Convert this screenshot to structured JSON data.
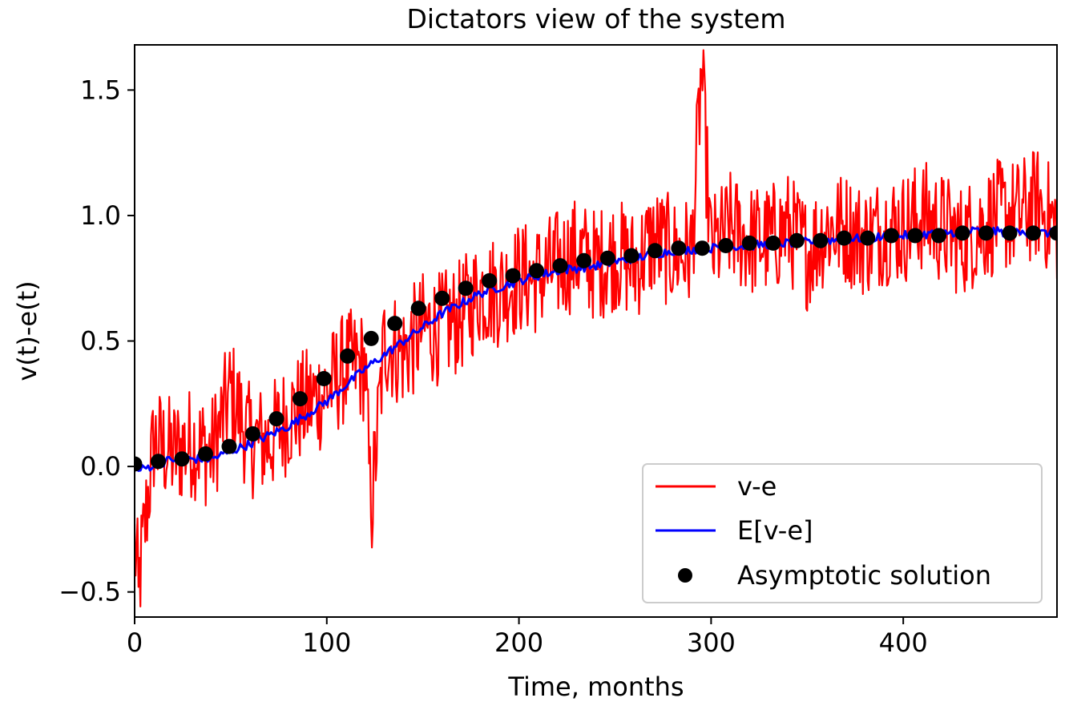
{
  "chart_data": {
    "type": "line",
    "title": "Dictators view of the system",
    "xlabel": "Time, months",
    "ylabel": "v(t)-e(t)",
    "xlim": [
      0,
      480
    ],
    "ylim": [
      -0.6,
      1.68
    ],
    "xticks": [
      0,
      100,
      200,
      300,
      400
    ],
    "xtick_labels": [
      "0",
      "100",
      "200",
      "300",
      "400"
    ],
    "yticks": [
      -0.5,
      0.0,
      0.5,
      1.0,
      1.5
    ],
    "ytick_labels": [
      "−0.5",
      "0.0",
      "0.5",
      "1.0",
      "1.5"
    ],
    "grid": false,
    "legend_position": "lower-right",
    "colors": {
      "ve": "#ff0000",
      "expectation": "#0000ff",
      "asymptotic": "#000000"
    },
    "series": [
      {
        "name": "v-e",
        "kind": "line",
        "color": "#ff0000"
      },
      {
        "name": "E[v-e]",
        "kind": "line",
        "color": "#0000ff"
      },
      {
        "name": "Asymptotic solution",
        "kind": "scatter",
        "color": "#000000"
      }
    ],
    "asymptotic_points": {
      "x": [
        0,
        12.3,
        24.6,
        36.9,
        49.2,
        61.5,
        73.8,
        86.1,
        98.5,
        110.8,
        123.1,
        135.4,
        147.7,
        160,
        172.3,
        184.6,
        196.9,
        209.2,
        221.5,
        233.8,
        246.2,
        258.5,
        270.8,
        283.1,
        295.4,
        307.7,
        320,
        332.3,
        344.6,
        356.9,
        369.2,
        381.5,
        393.8,
        406.2,
        418.5,
        430.8,
        443.1,
        455.4,
        467.7,
        480
      ],
      "y": [
        0.01,
        0.02,
        0.03,
        0.05,
        0.08,
        0.13,
        0.19,
        0.27,
        0.35,
        0.44,
        0.51,
        0.57,
        0.63,
        0.67,
        0.71,
        0.74,
        0.76,
        0.78,
        0.8,
        0.82,
        0.83,
        0.84,
        0.86,
        0.87,
        0.87,
        0.88,
        0.89,
        0.89,
        0.9,
        0.9,
        0.91,
        0.91,
        0.92,
        0.92,
        0.92,
        0.93,
        0.93,
        0.93,
        0.93,
        0.93
      ]
    },
    "expectation_anchor": {
      "x": [
        0,
        20,
        40,
        60,
        80,
        100,
        120,
        140,
        160,
        180,
        200,
        220,
        240,
        260,
        280,
        300,
        320,
        340,
        360,
        380,
        400,
        420,
        440,
        460,
        480
      ],
      "y": [
        -0.02,
        0.03,
        0.03,
        0.09,
        0.16,
        0.26,
        0.39,
        0.5,
        0.61,
        0.69,
        0.74,
        0.78,
        0.8,
        0.83,
        0.86,
        0.87,
        0.88,
        0.89,
        0.9,
        0.91,
        0.92,
        0.93,
        0.94,
        0.93,
        0.93
      ]
    },
    "ve_anchor": {
      "x": [
        0,
        2,
        10,
        20,
        30,
        40,
        50,
        60,
        70,
        80,
        90,
        100,
        110,
        120,
        123,
        130,
        140,
        150,
        160,
        170,
        180,
        190,
        200,
        210,
        220,
        230,
        240,
        250,
        260,
        270,
        280,
        290,
        295,
        300,
        310,
        320,
        330,
        340,
        350,
        360,
        370,
        380,
        390,
        400,
        410,
        420,
        430,
        440,
        450,
        460,
        470,
        480
      ],
      "y": [
        -0.3,
        -0.48,
        0.1,
        0.05,
        0.1,
        0.05,
        0.3,
        0.1,
        0.1,
        0.2,
        0.25,
        0.3,
        0.4,
        0.4,
        -0.2,
        0.5,
        0.45,
        0.55,
        0.55,
        0.6,
        0.7,
        0.7,
        0.75,
        0.75,
        0.8,
        0.85,
        0.8,
        0.85,
        0.8,
        0.9,
        0.85,
        0.85,
        1.58,
        0.85,
        0.95,
        0.9,
        0.9,
        0.95,
        0.85,
        0.95,
        0.95,
        0.9,
        0.95,
        0.95,
        1.0,
        0.95,
        0.9,
        0.95,
        1.0,
        1.0,
        1.05,
        0.95
      ],
      "noise_amplitude": 0.23
    }
  }
}
